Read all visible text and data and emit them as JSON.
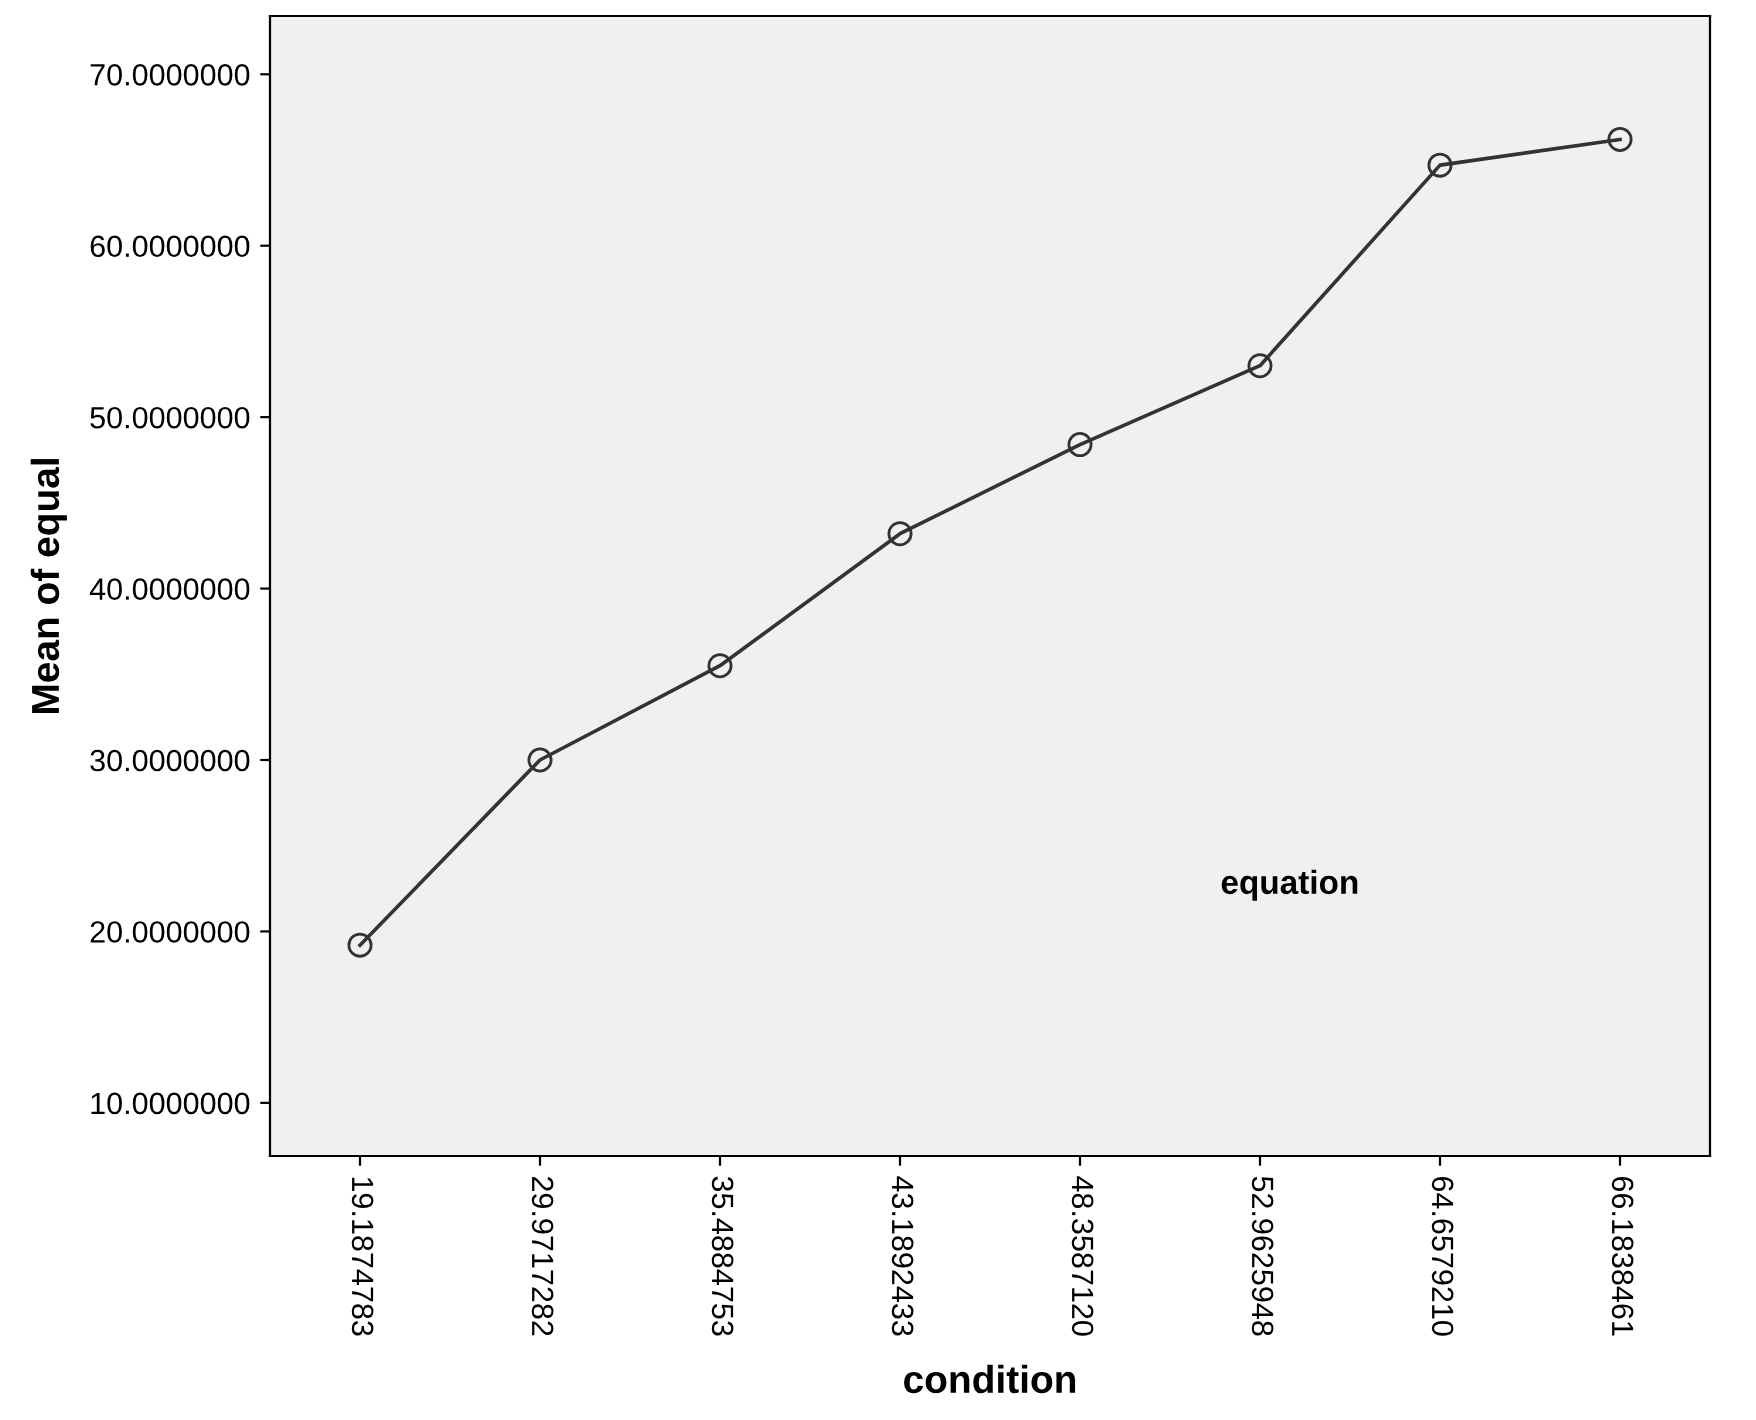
{
  "chart_data": {
    "type": "line",
    "xlabel": "condition",
    "ylabel": "Mean of equal",
    "categories": [
      "19.1874783",
      "29.9717282",
      "35.4884753",
      "43.1892433",
      "48.3587120",
      "52.9625948",
      "64.6579210",
      "66.1838461"
    ],
    "series": [
      {
        "color": "#333333",
        "values": [
          19.2,
          30.0,
          35.5,
          43.2,
          48.4,
          53.0,
          64.7,
          66.2
        ]
      }
    ],
    "ylim": [
      6.9,
      73.4
    ],
    "yticks": [
      {
        "value": 10,
        "label": "10.0000000"
      },
      {
        "value": 20,
        "label": "20.0000000"
      },
      {
        "value": 30,
        "label": "30.0000000"
      },
      {
        "value": 40,
        "label": "40.0000000"
      },
      {
        "value": 50,
        "label": "50.0000000"
      },
      {
        "value": 60,
        "label": "60.0000000"
      },
      {
        "value": 70,
        "label": "70.0000000"
      }
    ],
    "annotations": [
      "equation"
    ],
    "marker": "circle",
    "line_style": "solid",
    "grid": false,
    "legend": false
  }
}
